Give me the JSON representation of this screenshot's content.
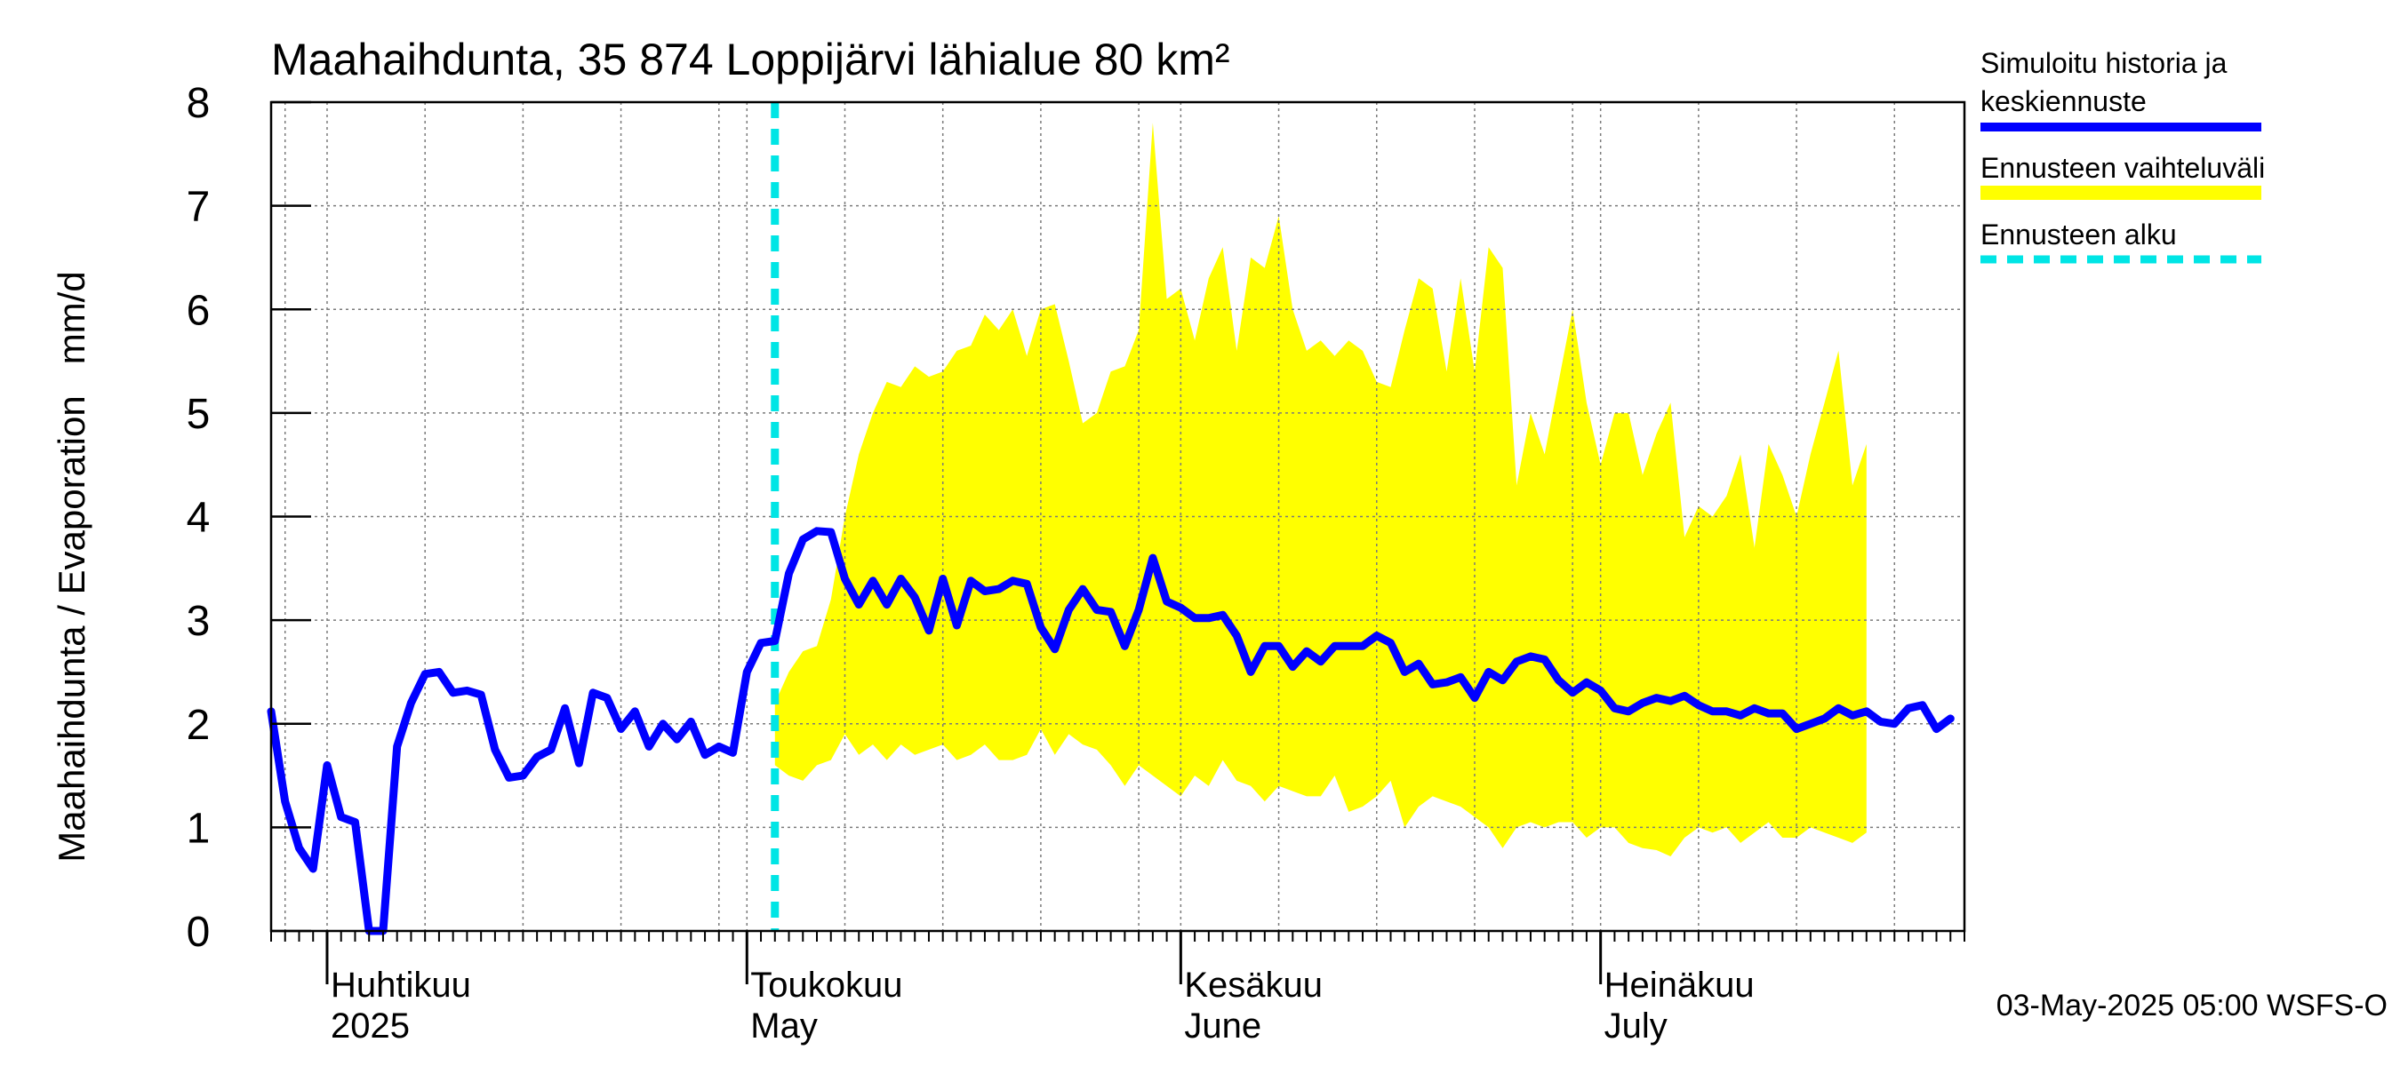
{
  "chart_data": {
    "type": "line",
    "title": "Maahaihdunta, 35 874 Loppijärvi lähialue 80 km²",
    "ylabel": "Maahaihdunta / Evaporation   mm/d",
    "ylim": [
      0,
      8
    ],
    "yticks": [
      0,
      1,
      2,
      3,
      4,
      5,
      6,
      7,
      8
    ],
    "xlim": [
      "2025-03-28",
      "2025-07-27"
    ],
    "month_labels": [
      {
        "date": "2025-04-01",
        "fi": "Huhtikuu",
        "en": "2025"
      },
      {
        "date": "2025-05-01",
        "fi": "Toukokuu",
        "en": "May"
      },
      {
        "date": "2025-06-01",
        "fi": "Kesäkuu",
        "en": "June"
      },
      {
        "date": "2025-07-01",
        "fi": "Heinäkuu",
        "en": "July"
      }
    ],
    "forecast_start": "2025-05-03",
    "footer": "03-May-2025 05:00 WSFS-O",
    "grid": true,
    "legend": {
      "placement": "right",
      "items": [
        {
          "label_line1": "Simuloitu historia ja",
          "label_line2": "keskiennuste",
          "color": "#0000ff",
          "style": "solid"
        },
        {
          "label_line1": "Ennusteen vaihteluväli",
          "label_line2": "",
          "color": "#ffff00",
          "style": "band"
        },
        {
          "label_line1": "Ennusteen alku",
          "label_line2": "",
          "color": "#00e5e5",
          "style": "dashed"
        }
      ]
    },
    "colors": {
      "median": "#0000ff",
      "band": "#ffff00",
      "forecast_start": "#00e5e5",
      "grid": "#808080"
    },
    "series": [
      {
        "name": "Simuloitu historia ja keskiennuste",
        "start": "2025-03-28",
        "values": [
          2.12,
          1.25,
          0.8,
          0.6,
          1.6,
          1.1,
          1.05,
          0.0,
          0.0,
          1.78,
          2.2,
          2.48,
          2.5,
          2.3,
          2.32,
          2.28,
          1.75,
          1.48,
          1.5,
          1.68,
          1.75,
          2.15,
          1.62,
          2.3,
          2.25,
          1.95,
          2.12,
          1.78,
          2.0,
          1.85,
          2.02,
          1.7,
          1.78,
          1.72,
          2.5,
          2.78,
          2.8,
          3.45,
          3.78,
          3.86,
          3.85,
          3.4,
          3.15,
          3.38,
          3.15,
          3.4,
          3.22,
          2.9,
          3.4,
          2.95,
          3.38,
          3.28,
          3.3,
          3.38,
          3.35,
          2.93,
          2.72,
          3.1,
          3.3,
          3.1,
          3.08,
          2.75,
          3.1,
          3.6,
          3.18,
          3.12,
          3.02,
          3.02,
          3.05,
          2.85,
          2.5,
          2.75,
          2.75,
          2.55,
          2.7,
          2.6,
          2.75,
          2.75,
          2.75,
          2.85,
          2.78,
          2.5,
          2.58,
          2.38,
          2.4,
          2.45,
          2.25,
          2.5,
          2.42,
          2.6,
          2.65,
          2.62,
          2.42,
          2.3,
          2.4,
          2.32,
          2.15,
          2.12,
          2.2,
          2.25,
          2.22,
          2.27,
          2.18,
          2.12,
          2.12,
          2.08,
          2.15,
          2.1,
          2.1,
          1.95,
          2.0,
          2.05,
          2.15,
          2.08,
          2.12,
          2.02,
          2.0,
          2.15,
          2.18,
          1.95,
          2.05
        ]
      }
    ],
    "band": {
      "name": "Ennusteen vaihteluväli",
      "start": "2025-05-03",
      "upper": [
        2.2,
        2.5,
        2.7,
        2.75,
        3.2,
        4.0,
        4.6,
        5.0,
        5.3,
        5.25,
        5.45,
        5.35,
        5.4,
        5.6,
        5.65,
        5.95,
        5.8,
        6.0,
        5.55,
        6.0,
        6.05,
        5.5,
        4.9,
        5.0,
        5.4,
        5.45,
        5.8,
        7.8,
        6.1,
        6.2,
        5.7,
        6.3,
        6.6,
        5.6,
        6.5,
        6.4,
        6.9,
        6.0,
        5.6,
        5.7,
        5.55,
        5.7,
        5.6,
        5.3,
        5.25,
        5.8,
        6.3,
        6.2,
        5.4,
        6.3,
        5.4,
        6.6,
        6.4,
        4.3,
        5.0,
        4.6,
        5.3,
        6.0,
        5.1,
        4.5,
        5.0,
        5.0,
        4.4,
        4.8,
        5.1,
        3.8,
        4.1,
        4.0,
        4.2,
        4.6,
        3.7,
        4.7,
        4.4,
        4.0,
        4.6,
        5.1,
        5.6,
        4.3,
        4.7
      ],
      "lower": [
        1.6,
        1.5,
        1.45,
        1.6,
        1.65,
        1.9,
        1.7,
        1.8,
        1.65,
        1.8,
        1.7,
        1.75,
        1.8,
        1.65,
        1.7,
        1.8,
        1.65,
        1.65,
        1.7,
        1.95,
        1.7,
        1.9,
        1.8,
        1.75,
        1.6,
        1.4,
        1.6,
        1.5,
        1.4,
        1.3,
        1.5,
        1.4,
        1.65,
        1.45,
        1.4,
        1.25,
        1.4,
        1.35,
        1.3,
        1.3,
        1.5,
        1.15,
        1.2,
        1.3,
        1.45,
        1.0,
        1.2,
        1.3,
        1.25,
        1.2,
        1.1,
        1.0,
        0.8,
        1.0,
        1.05,
        1.0,
        1.05,
        1.05,
        0.9,
        1.0,
        1.0,
        0.85,
        0.8,
        0.78,
        0.72,
        0.9,
        1.0,
        0.95,
        1.0,
        0.85,
        0.95,
        1.05,
        0.9,
        0.9,
        1.0,
        0.95,
        0.9,
        0.85,
        0.95
      ]
    }
  }
}
